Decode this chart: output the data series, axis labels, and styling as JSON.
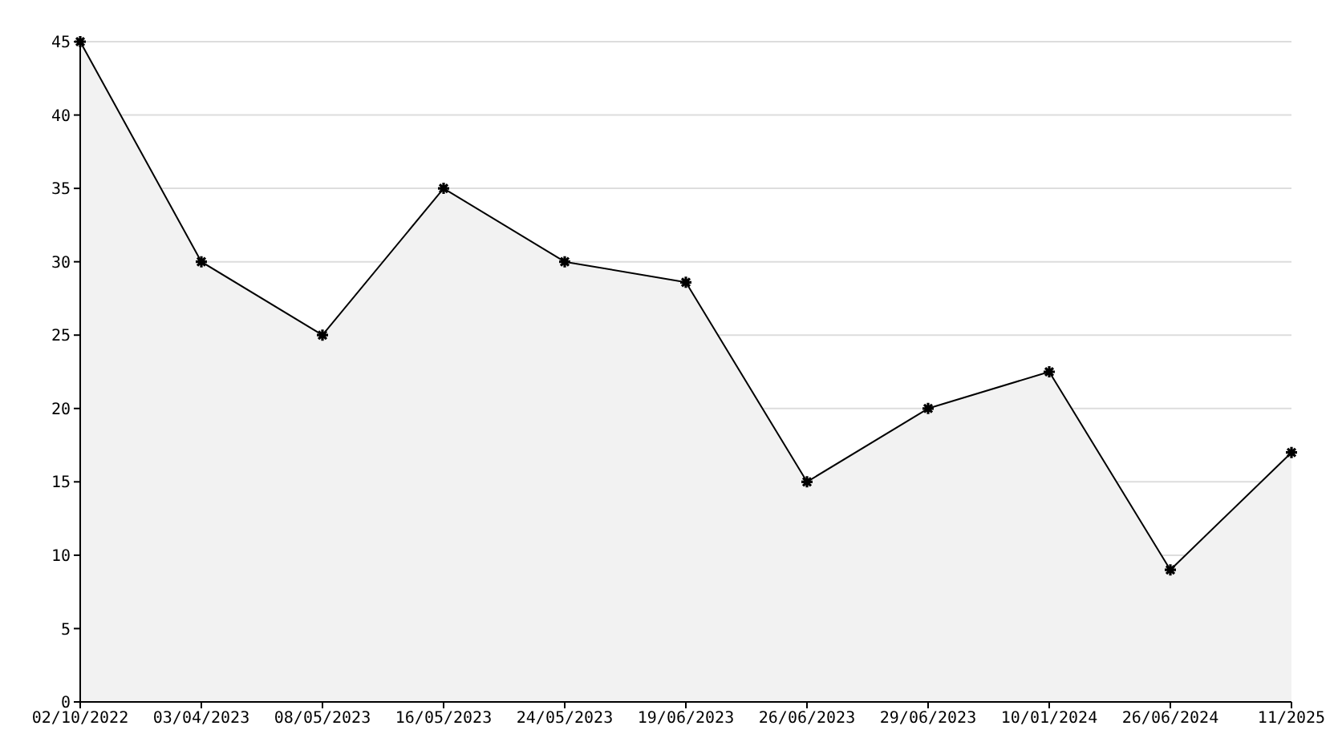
{
  "chart_data": {
    "type": "area",
    "categories": [
      "02/10/2022",
      "03/04/2023",
      "08/05/2023",
      "16/05/2023",
      "24/05/2023",
      "19/06/2023",
      "26/06/2023",
      "29/06/2023",
      "10/01/2024",
      "26/06/2024",
      "11/2025"
    ],
    "series": [
      {
        "color": "#000000",
        "values": [
          45,
          30,
          25,
          35,
          30,
          28.6,
          15,
          20,
          22.5,
          9,
          17
        ]
      }
    ],
    "ylim": [
      0,
      45
    ],
    "yticks": [
      0,
      5,
      10,
      15,
      20,
      25,
      30,
      35,
      40,
      45
    ],
    "grid": "y",
    "marker": "cross",
    "line_style": "solid"
  }
}
